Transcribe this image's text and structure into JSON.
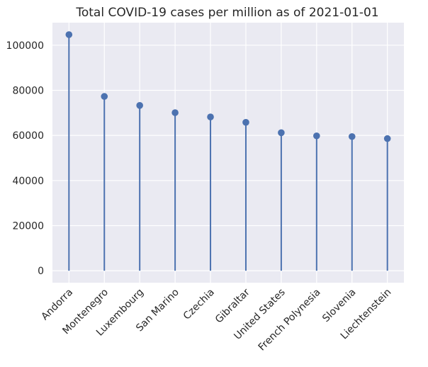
{
  "chart_data": {
    "type": "stem",
    "title": "Total COVID-19 cases per million as of 2021-01-01",
    "xlabel": "",
    "ylabel": "",
    "categories": [
      "Andorra",
      "Montenegro",
      "Luxembourg",
      "San Marino",
      "Czechia",
      "Gibraltar",
      "United States",
      "French Polynesia",
      "Slovenia",
      "Liechtenstein"
    ],
    "values": [
      104700,
      77300,
      73300,
      70100,
      68200,
      65800,
      61200,
      59800,
      59500,
      58600
    ],
    "ylim": [
      -5300,
      110000
    ],
    "yticks": [
      0,
      20000,
      40000,
      60000,
      80000,
      100000
    ],
    "grid": true,
    "colors": {
      "background": "#eaeaf2",
      "grid": "#ffffff",
      "stem": "#4c72b0"
    }
  }
}
